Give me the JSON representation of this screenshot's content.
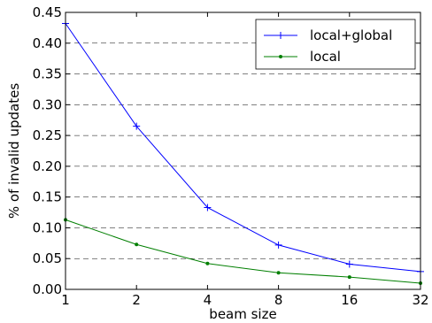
{
  "chart_data": {
    "type": "line",
    "xlabel": "beam size",
    "ylabel": "% of invalid updates",
    "x_scale": "log2",
    "x": [
      1,
      2,
      4,
      8,
      16,
      32
    ],
    "x_tick_labels": [
      "1",
      "2",
      "4",
      "8",
      "16",
      "32"
    ],
    "ylim": [
      0,
      0.45
    ],
    "y_ticks": [
      "0.00",
      "0.05",
      "0.10",
      "0.15",
      "0.20",
      "0.25",
      "0.30",
      "0.35",
      "0.40",
      "0.45"
    ],
    "grid": "horizontal dashed",
    "legend_position": "top-right",
    "series": [
      {
        "name": "local+global",
        "color": "#0000ff",
        "marker": "plus",
        "values": [
          0.432,
          0.265,
          0.133,
          0.072,
          0.041,
          0.029
        ]
      },
      {
        "name": "local",
        "color": "#007f00",
        "marker": "dot",
        "values": [
          0.113,
          0.073,
          0.042,
          0.027,
          0.02,
          0.01
        ]
      }
    ]
  }
}
